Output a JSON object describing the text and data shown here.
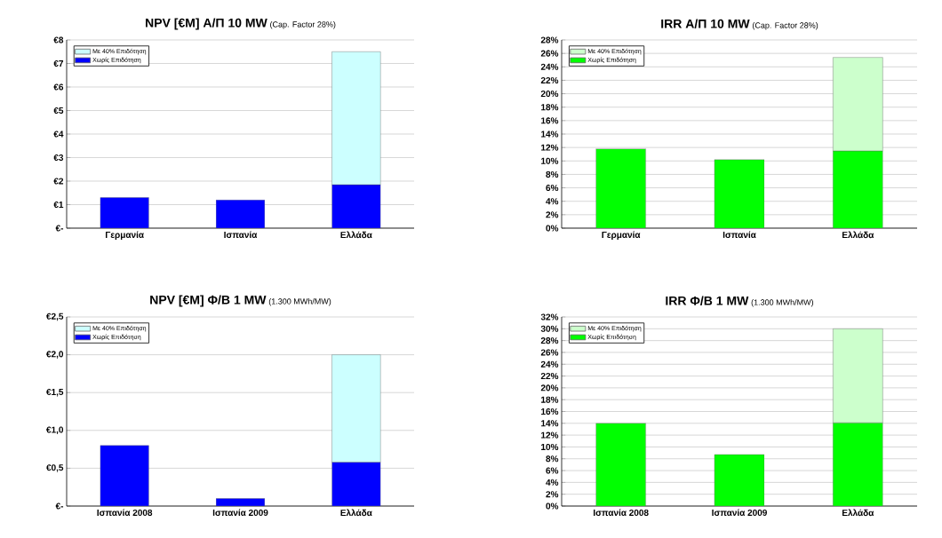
{
  "chart_data": [
    {
      "type": "bar",
      "title": "NPV [€M] Α/Π 10 MW",
      "subtitle": "(Cap. Factor 28%)",
      "categories": [
        "Γερμανία",
        "Ισπανία",
        "Ελλάδα"
      ],
      "stacked": true,
      "series": [
        {
          "name": "Χωρίς Επιδότηση",
          "color": "#0000ff",
          "values": [
            1.3,
            1.2,
            1.85
          ]
        },
        {
          "name": "Με 40% Επιδότηση",
          "color": "#ccffff",
          "values": [
            null,
            null,
            5.65
          ]
        }
      ],
      "ylim": [
        0,
        8
      ],
      "yticks": [
        {
          "value": 0,
          "label": "€-"
        },
        {
          "value": 1,
          "label": "€1"
        },
        {
          "value": 2,
          "label": "€2"
        },
        {
          "value": 3,
          "label": "€3"
        },
        {
          "value": 4,
          "label": "€4"
        },
        {
          "value": 5,
          "label": "€5"
        },
        {
          "value": 6,
          "label": "€6"
        },
        {
          "value": 7,
          "label": "€7"
        },
        {
          "value": 8,
          "label": "€8"
        }
      ],
      "grid": "y",
      "legend": "top left"
    },
    {
      "type": "bar",
      "title": "IRR Α/Π 10 MW",
      "subtitle": "(Cap. Factor 28%)",
      "categories": [
        "Γερμανία",
        "Ισπανία",
        "Ελλάδα"
      ],
      "stacked": true,
      "series": [
        {
          "name": "Χωρίς Επιδότηση",
          "color": "#00ff00",
          "values": [
            11.8,
            10.2,
            11.5
          ]
        },
        {
          "name": "Με 40% Επιδότηση",
          "color": "#ccffcc",
          "values": [
            null,
            null,
            13.9
          ]
        }
      ],
      "ylim": [
        0,
        28
      ],
      "yticks": [
        {
          "value": 0,
          "label": "0%"
        },
        {
          "value": 2,
          "label": "2%"
        },
        {
          "value": 4,
          "label": "4%"
        },
        {
          "value": 6,
          "label": "6%"
        },
        {
          "value": 8,
          "label": "8%"
        },
        {
          "value": 10,
          "label": "10%"
        },
        {
          "value": 12,
          "label": "12%"
        },
        {
          "value": 14,
          "label": "14%"
        },
        {
          "value": 16,
          "label": "16%"
        },
        {
          "value": 18,
          "label": "18%"
        },
        {
          "value": 20,
          "label": "20%"
        },
        {
          "value": 22,
          "label": "22%"
        },
        {
          "value": 24,
          "label": "24%"
        },
        {
          "value": 26,
          "label": "26%"
        },
        {
          "value": 28,
          "label": "28%"
        }
      ],
      "grid": "y",
      "legend": "top left"
    },
    {
      "type": "bar",
      "title": "NPV [€M] Φ/Β 1 MW",
      "subtitle": "(1.300 MWh/MW)",
      "categories": [
        "Ισπανία 2008",
        "Ισπανία 2009",
        "Ελλάδα"
      ],
      "stacked": true,
      "series": [
        {
          "name": "Χωρίς Επιδότηση",
          "color": "#0000ff",
          "values": [
            0.8,
            0.1,
            0.58
          ]
        },
        {
          "name": "Με 40% Επιδότηση",
          "color": "#ccffff",
          "values": [
            null,
            null,
            1.42
          ]
        }
      ],
      "ylim": [
        0,
        2.5
      ],
      "yticks": [
        {
          "value": 0,
          "label": "€-"
        },
        {
          "value": 0.5,
          "label": "€0,5"
        },
        {
          "value": 1,
          "label": "€1,0"
        },
        {
          "value": 1.5,
          "label": "€1,5"
        },
        {
          "value": 2,
          "label": "€2,0"
        },
        {
          "value": 2.5,
          "label": "€2,5"
        }
      ],
      "grid": "y",
      "legend": "top left"
    },
    {
      "type": "bar",
      "title": "IRR Φ/Β 1 MW",
      "subtitle": "(1.300 MWh/MW)",
      "categories": [
        "Ισπανία 2008",
        "Ισπανία 2009",
        "Ελλάδα"
      ],
      "stacked": true,
      "series": [
        {
          "name": "Χωρίς Επιδότηση",
          "color": "#00ff00",
          "values": [
            14,
            8.7,
            14.1
          ]
        },
        {
          "name": "Με 40% Επιδότηση",
          "color": "#ccffcc",
          "values": [
            null,
            null,
            15.9
          ]
        }
      ],
      "ylim": [
        0,
        32
      ],
      "yticks": [
        {
          "value": 0,
          "label": "0%"
        },
        {
          "value": 2,
          "label": "2%"
        },
        {
          "value": 4,
          "label": "4%"
        },
        {
          "value": 6,
          "label": "6%"
        },
        {
          "value": 8,
          "label": "8%"
        },
        {
          "value": 10,
          "label": "10%"
        },
        {
          "value": 12,
          "label": "12%"
        },
        {
          "value": 14,
          "label": "14%"
        },
        {
          "value": 16,
          "label": "16%"
        },
        {
          "value": 18,
          "label": "18%"
        },
        {
          "value": 20,
          "label": "20%"
        },
        {
          "value": 22,
          "label": "22%"
        },
        {
          "value": 24,
          "label": "24%"
        },
        {
          "value": 26,
          "label": "26%"
        },
        {
          "value": 28,
          "label": "28%"
        },
        {
          "value": 30,
          "label": "30%"
        },
        {
          "value": 32,
          "label": "32%"
        }
      ],
      "grid": "y",
      "legend": "top left"
    }
  ]
}
